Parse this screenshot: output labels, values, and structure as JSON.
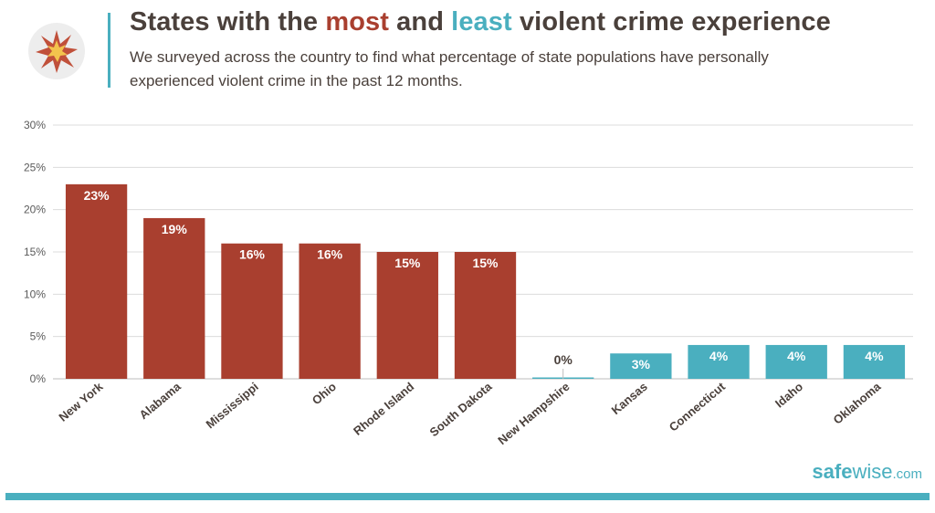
{
  "header": {
    "title_prefix": "States with the ",
    "title_most": "most",
    "title_mid": " and ",
    "title_least": "least",
    "title_suffix": " violent crime experience",
    "subtitle": "We surveyed across the country to find what percentage of state populations have personally experienced violent crime in the past 12 months."
  },
  "brand": {
    "name_a": "safe",
    "name_b": "wise",
    "domain": ".com"
  },
  "colors": {
    "most": "#a93f2f",
    "least": "#4aafbf",
    "text": "#4a403b",
    "grid": "#dcdcdc"
  },
  "chart_data": {
    "type": "bar",
    "categories": [
      "New York",
      "Alabama",
      "Mississippi",
      "Ohio",
      "Rhode Island",
      "South Dakota",
      "New Hampshire",
      "Kansas",
      "Connecticut",
      "Idaho",
      "Oklahoma"
    ],
    "values": [
      23,
      19,
      16,
      16,
      15,
      15,
      0,
      3,
      4,
      4,
      4
    ],
    "data_labels": [
      "23%",
      "19%",
      "16%",
      "16%",
      "15%",
      "15%",
      "0%",
      "3%",
      "4%",
      "4%",
      "4%"
    ],
    "groups": [
      "most",
      "most",
      "most",
      "most",
      "most",
      "most",
      "least",
      "least",
      "least",
      "least",
      "least"
    ],
    "yticks": [
      "0%",
      "5%",
      "10%",
      "15%",
      "20%",
      "25%",
      "30%"
    ],
    "ylim": [
      0,
      30
    ],
    "grid": true
  }
}
